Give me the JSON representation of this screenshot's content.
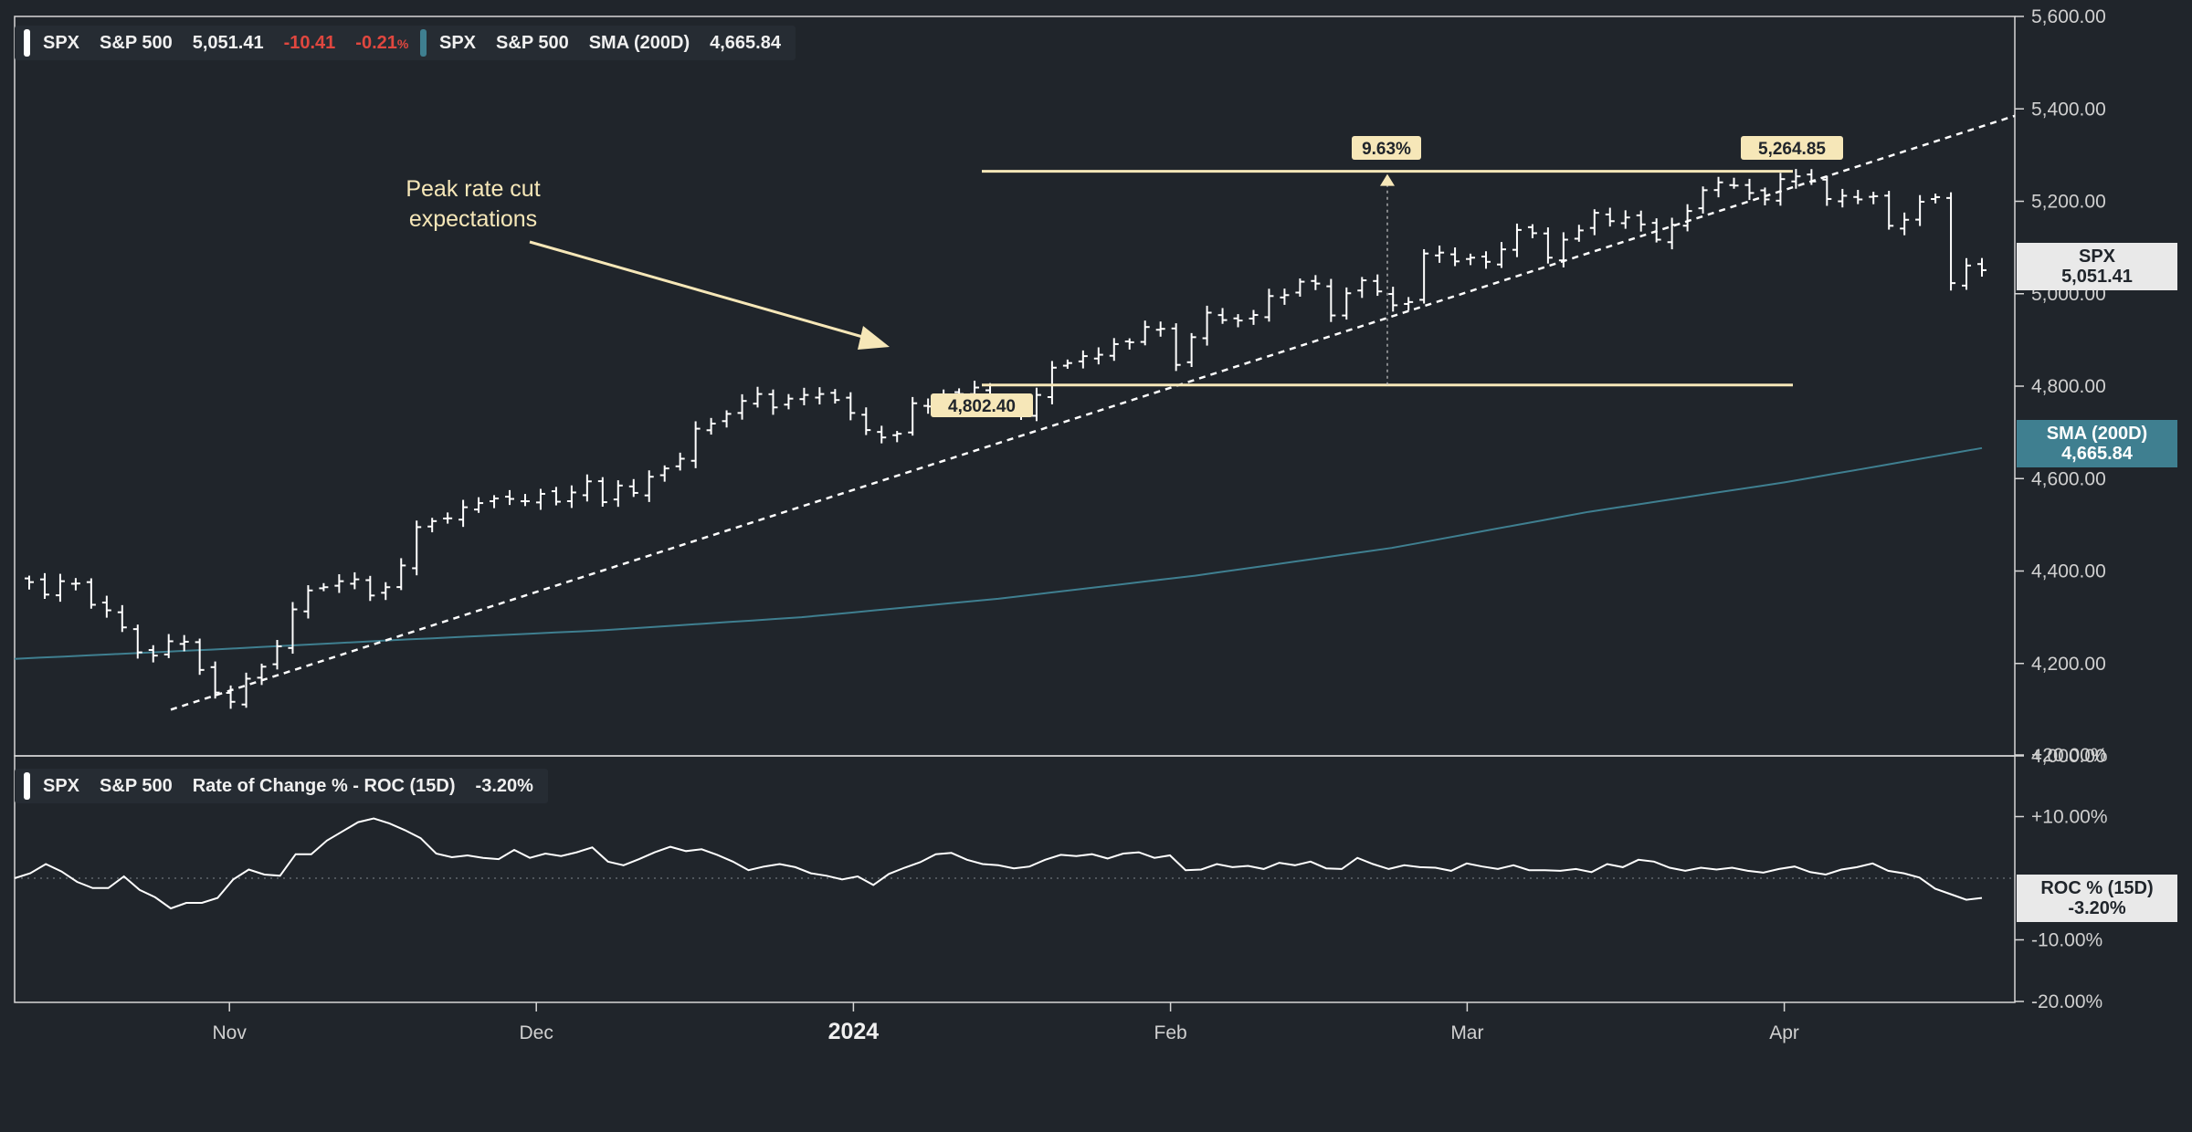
{
  "legend_main": {
    "symbol": "SPX",
    "name": "S&P 500",
    "last": "5,051.41",
    "change": "-10.41",
    "change_pct": "-0.21",
    "change_pct_unit": "%",
    "swatch_color": "#ffffff"
  },
  "legend_sma": {
    "symbol": "SPX",
    "name": "S&P 500",
    "indicator": "SMA (200D)",
    "value": "4,665.84",
    "swatch_color": "#3f7f90"
  },
  "legend_roc": {
    "symbol": "SPX",
    "name": "S&P 500",
    "indicator": "Rate of Change % - ROC (15D)",
    "value": "-3.20%",
    "swatch_color": "#ffffff"
  },
  "price_tags": {
    "spx": {
      "label": "SPX",
      "value": "5,051.41"
    },
    "sma": {
      "label": "SMA (200D)",
      "value": "4,665.84"
    },
    "roc": {
      "label": "ROC % (15D)",
      "value": "-3.20%"
    }
  },
  "annotation_text": [
    "Peak rate cut",
    "expectations"
  ],
  "measure": {
    "low": "4,802.40",
    "high": "5,264.85",
    "pct": "9.63%"
  },
  "colors": {
    "background": "#20252b",
    "price": "#ffffff",
    "sma": "#3f7f90",
    "annotation": "#f6e7b8",
    "negative": "#e0473f"
  },
  "chart_data": [
    {
      "type": "ohlc",
      "y_axis_ticks": [
        "5,600.00",
        "5,400.00",
        "5,200.00",
        "5,000.00",
        "4,800.00",
        "4,600.00",
        "4,400.00",
        "4,200.00",
        "4,000.00"
      ],
      "x_axis_ticks": [
        "Nov",
        "Dec",
        "2024",
        "Feb",
        "Mar",
        "Apr"
      ],
      "ylim": [
        4000,
        5600
      ],
      "x_range": [
        "2023-10-11",
        "2024-04-15"
      ],
      "grid": false,
      "series": [
        {
          "name": "S&P 500",
          "closes": [
            4376,
            4349,
            4378,
            4373,
            4327,
            4315,
            4278,
            4224,
            4217,
            4248,
            4247,
            4186,
            4137,
            4117,
            4167,
            4193,
            4237,
            4317,
            4358,
            4365,
            4378,
            4382,
            4347,
            4365,
            4412,
            4495,
            4508,
            4514,
            4538,
            4547,
            4557,
            4556,
            4551,
            4567,
            4550,
            4570,
            4594,
            4549,
            4585,
            4569,
            4604,
            4622,
            4643,
            4708,
            4719,
            4740,
            4768,
            4783,
            4754,
            4773,
            4781,
            4783,
            4770,
            4742,
            4705,
            4689,
            4697,
            4763,
            4756,
            4781,
            4783,
            4797,
            4766,
            4765,
            4739,
            4781,
            4840,
            4850,
            4865,
            4868,
            4891,
            4895,
            4928,
            4924,
            4846,
            4906,
            4959,
            4943,
            4942,
            4954,
            4995,
            4997,
            5026,
            5022,
            4953,
            5001,
            5029,
            5005,
            4975,
            4982,
            5087,
            5089,
            5070,
            5078,
            5069,
            5096,
            5138,
            5131,
            5078,
            5117,
            5137,
            5175,
            5157,
            5165,
            5150,
            5117,
            5149,
            5179,
            5224,
            5241,
            5234,
            5218,
            5204,
            5248,
            5254,
            5243,
            5205,
            5212,
            5204,
            5211,
            5147,
            5160,
            5199,
            5209,
            5023,
            5061,
            5051
          ]
        },
        {
          "name": "SMA (200D)",
          "values_approx": [
            4230,
            4250,
            4270,
            4300,
            4340,
            4390,
            4450,
            4530,
            4590,
            4666
          ]
        }
      ]
    },
    {
      "type": "line",
      "title": "Rate of Change % - ROC (15D)",
      "y_axis_ticks": [
        "+20.00%",
        "+10.00%",
        "-10.00%",
        "-20.00%"
      ],
      "ylim": [
        -20,
        20
      ],
      "series": [
        {
          "name": "Rate of Change % - ROC (15D)",
          "values": [
            0,
            0.8,
            2.3,
            1.1,
            -0.6,
            -1.6,
            -1.6,
            0.3,
            -1.9,
            -3.1,
            -4.9,
            -4.0,
            -4.0,
            -3.2,
            -0.2,
            1.4,
            0.6,
            0.4,
            3.9,
            3.9,
            6.1,
            7.6,
            9.1,
            9.7,
            8.9,
            7.8,
            6.5,
            4.0,
            3.4,
            3.7,
            3.3,
            3.1,
            4.6,
            3.3,
            4.0,
            3.6,
            4.2,
            5.0,
            2.7,
            2.1,
            3.1,
            4.2,
            5.1,
            4.4,
            4.7,
            3.8,
            2.7,
            1.3,
            1.9,
            2.3,
            1.8,
            0.8,
            0.4,
            -0.2,
            0.3,
            -1.1,
            0.7,
            1.7,
            2.6,
            3.9,
            4.1,
            3.0,
            2.3,
            2.1,
            1.6,
            1.9,
            3.0,
            3.8,
            3.6,
            3.9,
            3.2,
            4.0,
            4.2,
            3.3,
            3.7,
            1.3,
            1.4,
            2.3,
            1.8,
            2.0,
            1.5,
            2.5,
            2.1,
            2.7,
            1.6,
            1.5,
            3.3,
            2.3,
            1.5,
            2.1,
            1.8,
            1.7,
            1.2,
            2.4,
            1.9,
            1.5,
            2.1,
            1.3,
            1.3,
            1.2,
            1.5,
            1.0,
            2.3,
            1.8,
            3.0,
            2.7,
            1.7,
            1.2,
            1.7,
            1.4,
            1.7,
            1.2,
            0.9,
            1.5,
            1.9,
            1.0,
            0.6,
            1.4,
            1.8,
            2.4,
            1.2,
            0.8,
            0.1,
            -1.7,
            -2.6,
            -3.5,
            -3.2
          ]
        }
      ]
    }
  ]
}
